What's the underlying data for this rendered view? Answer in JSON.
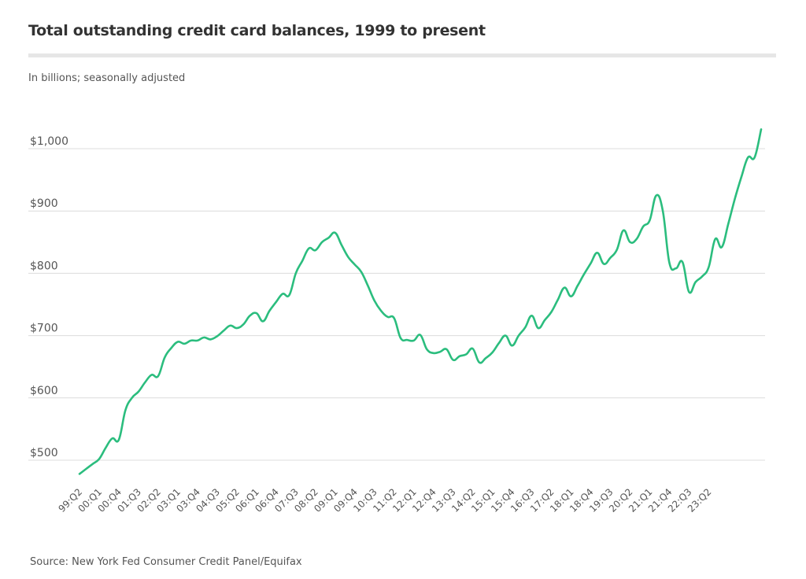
{
  "chart_data": {
    "type": "line",
    "title": "Total outstanding credit card balances, 1999 to present",
    "subtitle": "In billions; seasonally adjusted",
    "source": "Source: New York Fed Consumer Credit Panel/Equifax",
    "xlabel": "",
    "ylabel": "",
    "ylim": [
      460,
      1040
    ],
    "grid": true,
    "legend": "none",
    "line_color": "#2bbd7e",
    "y_ticks": [
      {
        "value": 500,
        "label": "$500"
      },
      {
        "value": 600,
        "label": "$600"
      },
      {
        "value": 700,
        "label": "$700"
      },
      {
        "value": 800,
        "label": "$800"
      },
      {
        "value": 900,
        "label": "$900"
      },
      {
        "value": 1000,
        "label": "$1,000"
      }
    ],
    "x_tick_labels": [
      "99:Q2",
      "00:Q1",
      "00:Q4",
      "01:Q3",
      "02:Q2",
      "03:Q1",
      "03:Q4",
      "04:Q3",
      "05:Q2",
      "06:Q1",
      "06:Q4",
      "07:Q3",
      "08:Q2",
      "09:Q1",
      "09:Q4",
      "10:Q3",
      "11:Q2",
      "12:Q1",
      "12:Q4",
      "13:Q3",
      "14:Q2",
      "15:Q1",
      "15:Q4",
      "16:Q3",
      "17:Q2",
      "18:Q1",
      "18:Q4",
      "19:Q3",
      "20:Q2",
      "21:Q1",
      "21:Q4",
      "22:Q3",
      "23:Q2"
    ],
    "series": [
      {
        "name": "Credit card balances",
        "start_quarter": "99:Q2",
        "values": [
          478,
          486,
          494,
          502,
          520,
          535,
          533,
          580,
          600,
          610,
          625,
          637,
          635,
          665,
          680,
          690,
          687,
          692,
          692,
          697,
          694,
          699,
          708,
          716,
          712,
          718,
          732,
          736,
          723,
          740,
          754,
          767,
          765,
          800,
          820,
          840,
          837,
          850,
          857,
          865,
          845,
          826,
          814,
          802,
          780,
          756,
          740,
          730,
          728,
          696,
          693,
          692,
          701,
          678,
          672,
          674,
          678,
          661,
          667,
          670,
          679,
          657,
          664,
          673,
          688,
          700,
          684,
          700,
          713,
          732,
          712,
          725,
          738,
          758,
          777,
          763,
          780,
          799,
          816,
          833,
          815,
          825,
          838,
          869,
          850,
          855,
          875,
          885,
          925,
          900,
          817,
          808,
          818,
          770,
          786,
          795,
          810,
          855,
          842,
          880,
          920,
          955,
          986,
          986,
          1031
        ]
      }
    ]
  }
}
